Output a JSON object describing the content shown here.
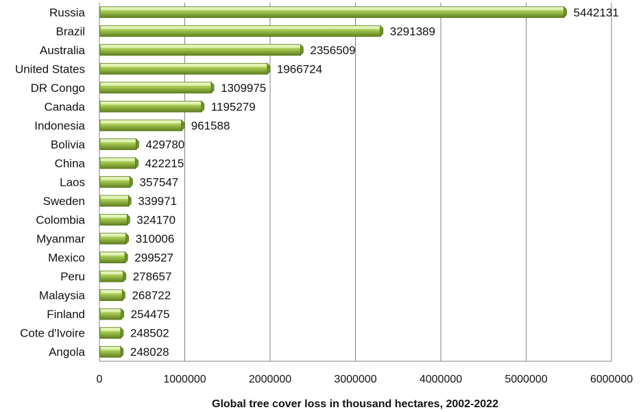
{
  "chart_data": {
    "type": "bar",
    "orientation": "horizontal",
    "categories": [
      "Russia",
      "Brazil",
      "Australia",
      "United States",
      "DR Congo",
      "Canada",
      "Indonesia",
      "Bolivia",
      "China",
      "Laos",
      "Sweden",
      "Colombia",
      "Myanmar",
      "Mexico",
      "Peru",
      "Malaysia",
      "Finland",
      "Cote d'Ivoire",
      "Angola"
    ],
    "values": [
      5442131,
      3291389,
      2356509,
      1966724,
      1309975,
      1195279,
      961588,
      429780,
      422215,
      357547,
      339971,
      324170,
      310006,
      299527,
      278657,
      268722,
      254475,
      248502,
      248028
    ],
    "value_labels": [
      "5442131",
      "3291389",
      "2356509",
      "1966724",
      "1309975",
      "1195279",
      "961588",
      "429780",
      "422215",
      "357547",
      "339971",
      "324170",
      "310006",
      "299527",
      "278657",
      "268722",
      "254475",
      "248502",
      "248028"
    ],
    "xlabel": "Global tree cover loss in thousand hectares, 2002-2022",
    "ylabel": "",
    "xlim": [
      0,
      6000000
    ],
    "xticks": [
      0,
      1000000,
      2000000,
      3000000,
      4000000,
      5000000,
      6000000
    ],
    "xtick_labels": [
      "0",
      "1000000",
      "2000000",
      "3000000",
      "4000000",
      "5000000",
      "6000000"
    ],
    "grid": "vertical",
    "legend": "none",
    "colors": {
      "bar": "#8db33a",
      "bar_light": "#d3eca0",
      "bar_dark": "#5d7a1f",
      "grid": "#808080",
      "text": "#111111"
    }
  }
}
